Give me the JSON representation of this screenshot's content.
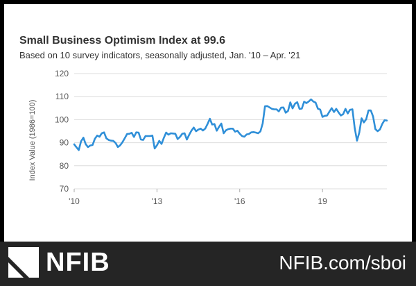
{
  "chart_data": {
    "type": "line",
    "title": "Small Business Optimism Index at 99.6",
    "subtitle": "Based on 10 survey indicators, seasonally adjusted, Jan. '10 – Apr. '21",
    "ylabel": "Index Value (1986=100)",
    "xlabel": "",
    "ylim": [
      70,
      120
    ],
    "yticks": [
      "70",
      "80",
      "90",
      "100",
      "110",
      "120"
    ],
    "xticks": [
      {
        "label": "'10",
        "t": 0
      },
      {
        "label": "'13",
        "t": 36
      },
      {
        "label": "'16",
        "t": 72
      },
      {
        "label": "19",
        "t": 108
      }
    ],
    "grid": "horizontal",
    "line_color": "#2f8fd8",
    "series": [
      {
        "name": "Small Business Optimism Index",
        "values": [
          89.3,
          88.0,
          86.8,
          90.6,
          92.2,
          89.4,
          88.1,
          88.8,
          89.0,
          91.7,
          93.1,
          92.6,
          94.1,
          94.5,
          91.9,
          91.2,
          90.9,
          90.8,
          89.9,
          88.1,
          88.9,
          90.2,
          92.0,
          93.8,
          93.9,
          94.3,
          92.5,
          94.5,
          94.4,
          91.4,
          91.2,
          92.9,
          92.9,
          92.9,
          93.1,
          87.5,
          88.9,
          90.8,
          89.5,
          92.1,
          94.4,
          93.5,
          94.1,
          94.0,
          93.9,
          91.6,
          92.5,
          93.9,
          94.1,
          91.4,
          93.4,
          95.2,
          96.6,
          95.0,
          95.7,
          96.1,
          95.3,
          96.1,
          98.1,
          100.4,
          97.9,
          98.1,
          95.2,
          96.9,
          98.3,
          94.1,
          95.4,
          95.9,
          96.1,
          96.1,
          94.8,
          95.2,
          93.9,
          92.9,
          92.6,
          93.6,
          93.8,
          94.5,
          94.6,
          94.4,
          94.1,
          94.9,
          98.4,
          105.8,
          105.9,
          105.3,
          104.7,
          104.5,
          104.5,
          103.6,
          105.2,
          105.3,
          103.0,
          103.8,
          107.5,
          104.9,
          106.9,
          107.6,
          104.7,
          104.8,
          107.8,
          107.2,
          107.9,
          108.8,
          107.9,
          107.4,
          104.8,
          104.4,
          101.2,
          101.7,
          101.8,
          103.5,
          105.0,
          103.3,
          104.7,
          103.1,
          101.8,
          102.4,
          104.7,
          102.7,
          104.3,
          104.5,
          96.4,
          90.9,
          94.4,
          100.6,
          98.8,
          100.2,
          104.0,
          104.0,
          101.4,
          95.9,
          95.0,
          95.8,
          98.2,
          99.8,
          99.6
        ]
      }
    ]
  },
  "footer": {
    "brand": "NFIB",
    "url": "NFIB.com/sboi"
  },
  "colors": {
    "background_frame": "#000000",
    "footer": "#252525",
    "card": "#ffffff",
    "line": "#2f8fd8",
    "grid": "#dcdcdc",
    "text": "#333333",
    "axis_text": "#555555"
  },
  "icons": {
    "logo_mark": "nfib-logo-mark-icon"
  }
}
